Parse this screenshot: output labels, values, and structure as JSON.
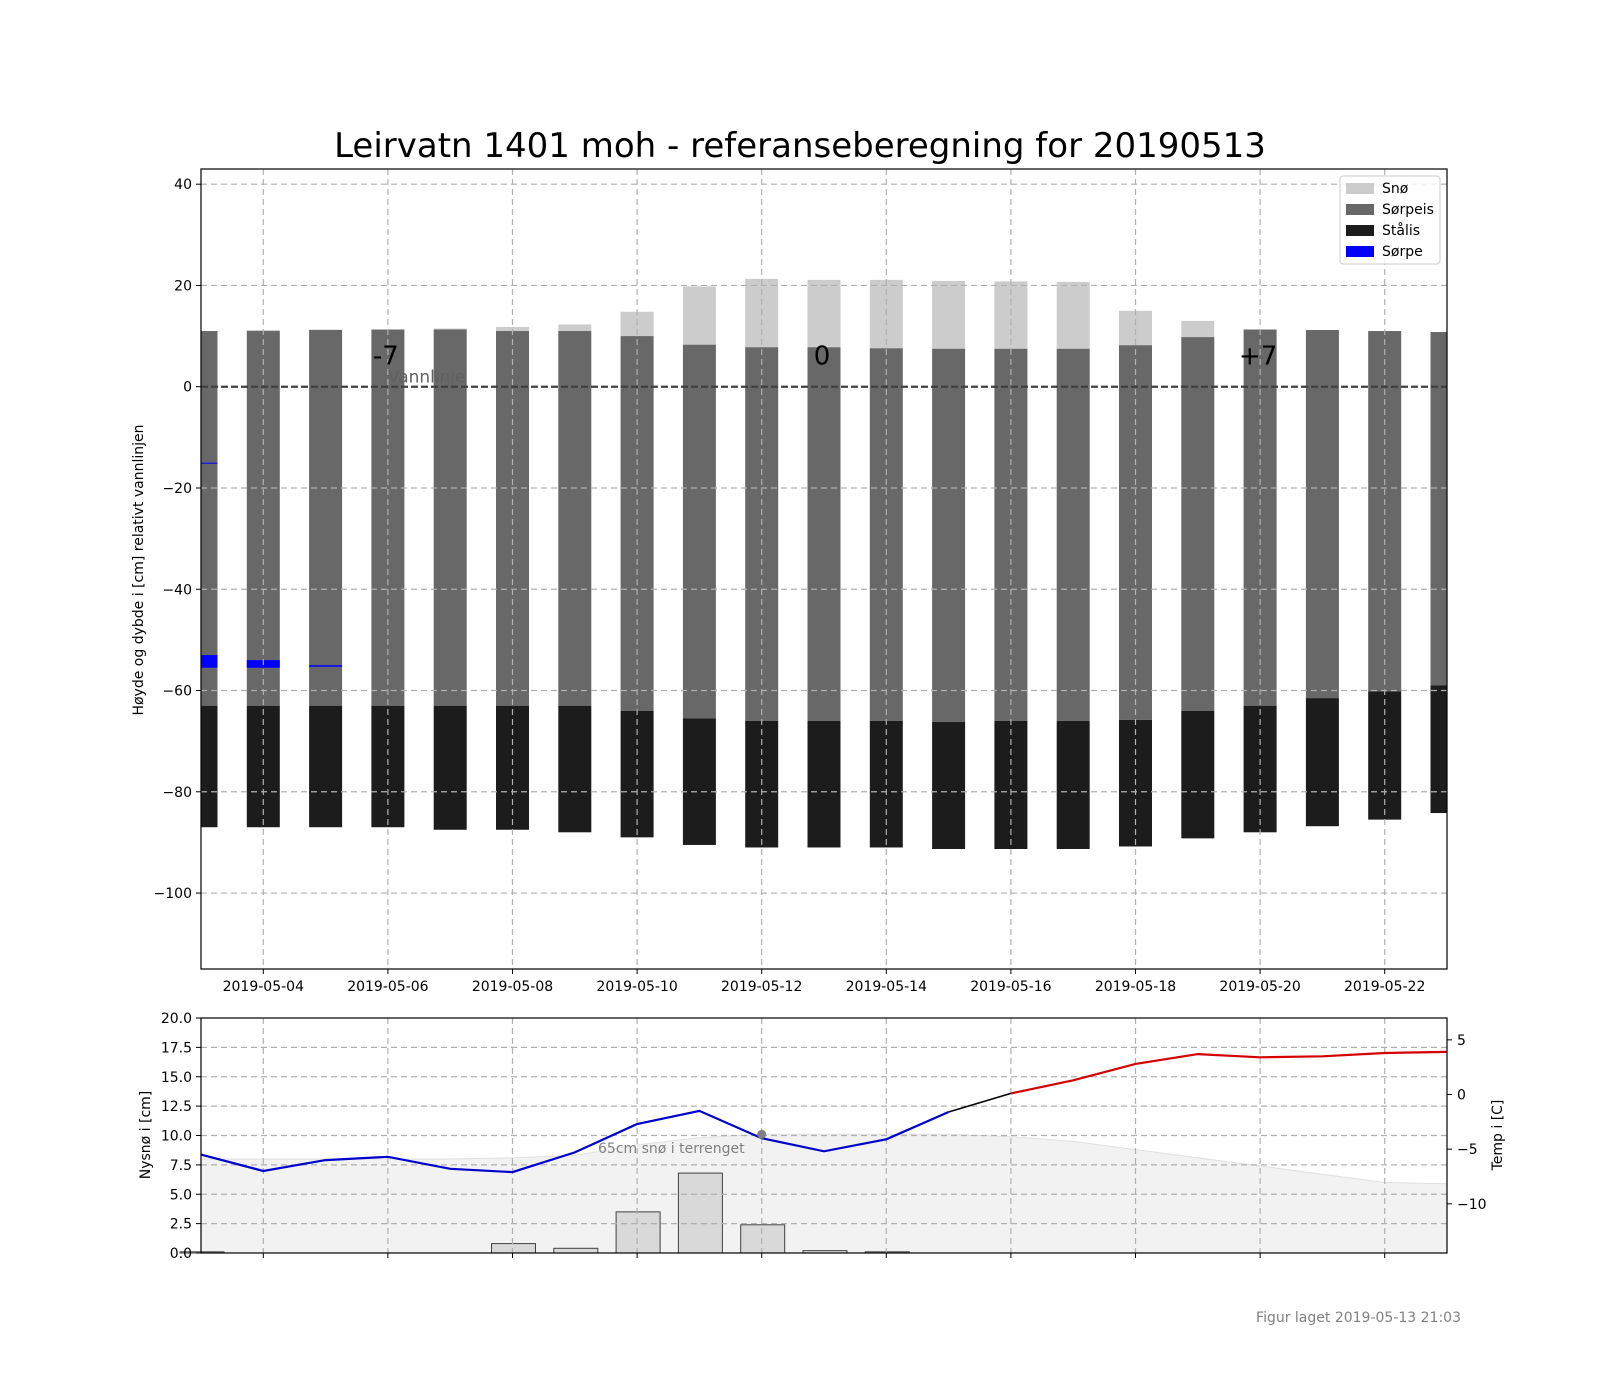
{
  "figure": {
    "title": "Leirvatn 1401 moh - referanseberegning for 20190513",
    "footer": "Figur laget 2019-05-13 21:03"
  },
  "colors": {
    "snow": "#cccccc",
    "slush_ice": "#686868",
    "black_ice": "#1c1c1c",
    "slush": "#0000ff",
    "temp_forecast": "#d40000",
    "temp_observed": "#0000cc",
    "temp_bridge": "#000000",
    "terrain_fill": "#f2f2f2",
    "newsnow_bar": "#d9d9d9"
  },
  "chart_data": [
    {
      "type": "bar",
      "title": "Leirvatn 1401 moh - referanseberegning for 20190513",
      "ylabel": "Høyde og dybde i [cm] relativt vannlinjen",
      "ylim": [
        -115,
        43
      ],
      "yticks": [
        40,
        20,
        0,
        -20,
        -40,
        -60,
        -80,
        -100
      ],
      "ytick_labels": [
        "40",
        "20",
        "0",
        "−20",
        "−40",
        "−60",
        "−80",
        "−100"
      ],
      "xlim": [
        "2019-05-03",
        "2019-05-23"
      ],
      "xtick_labels": [
        "2019-05-04",
        "2019-05-06",
        "2019-05-08",
        "2019-05-10",
        "2019-05-12",
        "2019-05-14",
        "2019-05-16",
        "2019-05-18",
        "2019-05-20",
        "2019-05-22"
      ],
      "grid": true,
      "legend": {
        "position": "top-right",
        "entries": [
          {
            "label": "Snø",
            "series": "snow"
          },
          {
            "label": "Sørpeis",
            "series": "slush_ice"
          },
          {
            "label": "Stålis",
            "series": "black_ice"
          },
          {
            "label": "Sørpe",
            "series": "slush"
          }
        ]
      },
      "annotations": [
        {
          "text": "-7",
          "date": "2019-05-06"
        },
        {
          "text": "0",
          "date": "2019-05-13"
        },
        {
          "text": "+7",
          "date": "2019-05-20"
        },
        {
          "text": "Vannlinje",
          "date": "2019-05-06"
        }
      ],
      "waterline": 0,
      "bars": [
        {
          "date": "2019-05-03",
          "snow_top": 11,
          "sorpeis_bottom": -63,
          "stalis_bottom": -87,
          "sorpe": [
            [
              -53,
              -55.5
            ],
            [
              -15,
              -15.2
            ]
          ]
        },
        {
          "date": "2019-05-04",
          "snow_top": 11.2,
          "sorpeis_bottom": -63,
          "stalis_bottom": -87,
          "sorpe": [
            [
              -54,
              -55.5
            ]
          ]
        },
        {
          "date": "2019-05-05",
          "snow_top": 11.3,
          "sorpeis_bottom": -63,
          "stalis_bottom": -87,
          "sorpe": [
            [
              -55,
              -55.3
            ]
          ]
        },
        {
          "date": "2019-05-06",
          "snow_top": 11.3,
          "sorpeis_bottom": -63,
          "stalis_bottom": -87,
          "sorpe": []
        },
        {
          "date": "2019-05-07",
          "snow_top": 11.5,
          "sorpeis_bottom": -63,
          "stalis_bottom": -87.5,
          "sorpe": []
        },
        {
          "date": "2019-05-08",
          "snow_top": 11.8,
          "sorpeis_bottom": -63,
          "stalis_bottom": -87.5,
          "sorpe": []
        },
        {
          "date": "2019-05-09",
          "snow_top": 12.3,
          "sorpeis_bottom": -63,
          "stalis_bottom": -88,
          "sorpe": []
        },
        {
          "date": "2019-05-10",
          "snow_top": 14.8,
          "sorpeis_bottom": -64,
          "stalis_bottom": -89,
          "sorpe": []
        },
        {
          "date": "2019-05-11",
          "snow_top": 19.8,
          "sorpeis_bottom": -65.5,
          "stalis_bottom": -90.5,
          "sorpe": []
        },
        {
          "date": "2019-05-12",
          "snow_top": 21.3,
          "sorpeis_bottom": -66,
          "stalis_bottom": -91,
          "sorpe": []
        },
        {
          "date": "2019-05-13",
          "snow_top": 21.1,
          "sorpeis_bottom": -66,
          "stalis_bottom": -91,
          "sorpe": []
        },
        {
          "date": "2019-05-14",
          "snow_top": 21.1,
          "sorpeis_bottom": -66,
          "stalis_bottom": -91,
          "sorpe": []
        },
        {
          "date": "2019-05-15",
          "snow_top": 20.9,
          "sorpeis_bottom": -66.2,
          "stalis_bottom": -91.3,
          "sorpe": []
        },
        {
          "date": "2019-05-16",
          "snow_top": 20.8,
          "sorpeis_bottom": -66,
          "stalis_bottom": -91.3,
          "sorpe": []
        },
        {
          "date": "2019-05-17",
          "snow_top": 20.7,
          "sorpeis_bottom": -66,
          "stalis_bottom": -91.3,
          "sorpe": []
        },
        {
          "date": "2019-05-18",
          "snow_top": 15,
          "sorpeis_bottom": -65.8,
          "stalis_bottom": -90.8,
          "sorpe": []
        },
        {
          "date": "2019-05-19",
          "snow_top": 13,
          "sorpeis_bottom": -64,
          "stalis_bottom": -89.2,
          "sorpe": []
        },
        {
          "date": "2019-05-20",
          "snow_top": 11.3,
          "sorpeis_bottom": -63,
          "stalis_bottom": -88,
          "sorpe": []
        },
        {
          "date": "2019-05-21",
          "snow_top": 11.2,
          "sorpeis_bottom": -61.5,
          "stalis_bottom": -86.8,
          "sorpe": []
        },
        {
          "date": "2019-05-22",
          "snow_top": 11,
          "sorpeis_bottom": -60.2,
          "stalis_bottom": -85.5,
          "sorpe": []
        },
        {
          "date": "2019-05-23",
          "snow_top": 10.8,
          "sorpeis_bottom": -59,
          "stalis_bottom": -84.2,
          "sorpe": []
        }
      ],
      "ice_top": [
        11,
        11,
        11.2,
        11.3,
        11.3,
        11,
        11,
        10,
        8.3,
        7.8,
        7.8,
        7.6,
        7.5,
        7.5,
        7.5,
        8.2,
        9.8,
        11.3,
        11.2,
        11,
        10.8
      ]
    },
    {
      "type": "bar",
      "ylabel": "Nysnø i [cm]",
      "ylabel_right": "Temp i [C]",
      "ylim": [
        0,
        20
      ],
      "yticks": [
        0,
        2.5,
        5,
        7.5,
        10,
        12.5,
        15,
        17.5,
        20
      ],
      "ytick_labels": [
        "0.0",
        "2.5",
        "5.0",
        "7.5",
        "10.0",
        "12.5",
        "15.0",
        "17.5",
        "20.0"
      ],
      "ylim_right": [
        -14.5,
        7
      ],
      "yticks_right": [
        5,
        0,
        -5,
        -10
      ],
      "ytick_labels_right": [
        "5",
        "0",
        "−5",
        "−10"
      ],
      "grid": true,
      "annotation": "65cm snø i terrenget",
      "snow_depth_point": {
        "date": "2019-05-12",
        "value": 10.1
      },
      "newsnow": [
        {
          "date": "2019-05-03",
          "value": 0.1
        },
        {
          "date": "2019-05-08",
          "value": 0.8
        },
        {
          "date": "2019-05-09",
          "value": 0.4
        },
        {
          "date": "2019-05-10",
          "value": 3.5
        },
        {
          "date": "2019-05-11",
          "value": 6.8
        },
        {
          "date": "2019-05-12",
          "value": 2.4
        },
        {
          "date": "2019-05-13",
          "value": 0.2
        },
        {
          "date": "2019-05-14",
          "value": 0.1
        }
      ],
      "terrain_snow": {
        "dates": [
          "2019-05-03",
          "2019-05-05",
          "2019-05-07",
          "2019-05-08",
          "2019-05-09",
          "2019-05-10",
          "2019-05-11",
          "2019-05-12",
          "2019-05-15",
          "2019-05-16",
          "2019-05-17",
          "2019-05-18",
          "2019-05-20",
          "2019-05-22",
          "2019-05-23"
        ],
        "values": [
          8,
          8,
          8,
          8.1,
          8.3,
          9.2,
          9.8,
          10.1,
          10.1,
          9.9,
          9.5,
          8.8,
          7.4,
          6,
          5.9
        ]
      },
      "temp_observed": {
        "dates": [
          "2019-05-03",
          "2019-05-04",
          "2019-05-05",
          "2019-05-06",
          "2019-05-07",
          "2019-05-08",
          "2019-05-09",
          "2019-05-10",
          "2019-05-11",
          "2019-05-12",
          "2019-05-13",
          "2019-05-14",
          "2019-05-15"
        ],
        "values": [
          -5.5,
          -7,
          -6,
          -5.7,
          -6.8,
          -7.1,
          -5.3,
          -2.7,
          -1.5,
          -4,
          -5.2,
          -4.1,
          -1.6
        ]
      },
      "temp_bridge": {
        "dates": [
          "2019-05-15",
          "2019-05-16"
        ],
        "values": [
          -1.6,
          0.1
        ]
      },
      "temp_forecast": {
        "dates": [
          "2019-05-16",
          "2019-05-17",
          "2019-05-18",
          "2019-05-19",
          "2019-05-20",
          "2019-05-21",
          "2019-05-22",
          "2019-05-23"
        ],
        "values": [
          0.1,
          1.3,
          2.8,
          3.7,
          3.4,
          3.5,
          3.8,
          3.9
        ]
      }
    }
  ]
}
